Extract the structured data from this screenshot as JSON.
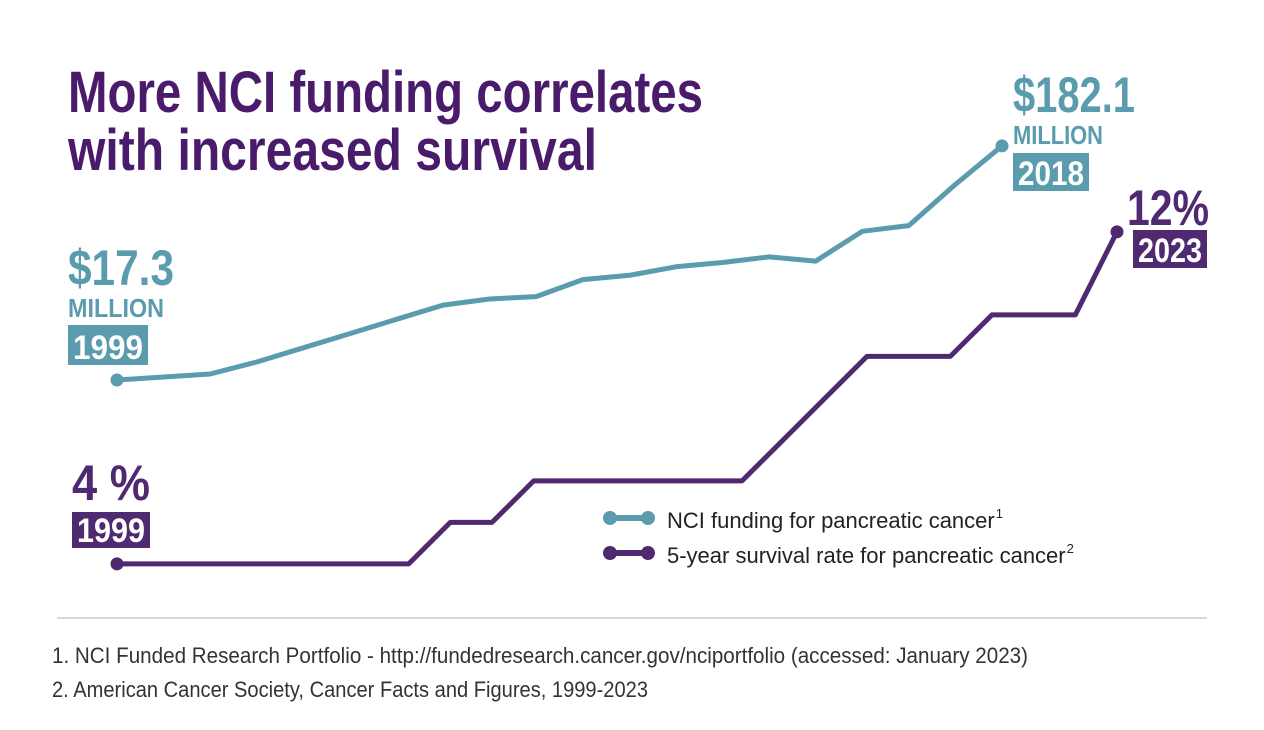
{
  "chart_data": {
    "type": "line",
    "title_lines": [
      "More NCI funding correlates",
      "with increased survival"
    ],
    "series": [
      {
        "name": "NCI funding for pancreatic cancer",
        "ref": "1",
        "color": "#5b9bae",
        "x": [
          1999,
          2000,
          2001,
          2002,
          2003,
          2004,
          2005,
          2006,
          2007,
          2008,
          2009,
          2010,
          2011,
          2012,
          2013,
          2014,
          2015,
          2016,
          2017,
          2018
        ],
        "values": [
          17.3,
          19.4,
          21.5,
          30,
          40,
          50,
          60,
          70,
          74.3,
          76,
          88,
          91,
          97,
          100,
          104,
          101,
          122,
          126,
          155,
          182.1
        ],
        "endpoints": [
          {
            "label": "$17.3",
            "unit": "MILLION"
          },
          {
            "label": "$182.1",
            "unit": "MILLION"
          }
        ]
      },
      {
        "name": "5-year survival rate for pancreatic cancer",
        "ref": "2",
        "color": "#4f2a70",
        "axis": "y2",
        "x": [
          1999,
          2000,
          2001,
          2002,
          2003,
          2004,
          2005,
          2006,
          2007,
          2008,
          2009,
          2010,
          2011,
          2012,
          2013,
          2014,
          2015,
          2016,
          2017,
          2018,
          2019,
          2020,
          2021,
          2022,
          2023
        ],
        "values": [
          4,
          4,
          4,
          4,
          4,
          4,
          4,
          4,
          5,
          5,
          6,
          6,
          6,
          6,
          6,
          6,
          7,
          8,
          9,
          9,
          9,
          10,
          10,
          10,
          12
        ],
        "endpoints": [
          {
            "label": "4 %"
          },
          {
            "label": "12%"
          }
        ]
      }
    ],
    "ylim": [
      -137.6,
      242.6
    ],
    "y2lim": [
      3.13,
      16.14
    ],
    "footnotes": [
      "1. NCI Funded Research Portfolio - http://fundedresearch.cancer.gov/nciportfolio (accessed: January 2023)",
      "2. American Cancer Society, Cancer Facts and Figures, 1999-2023"
    ]
  }
}
